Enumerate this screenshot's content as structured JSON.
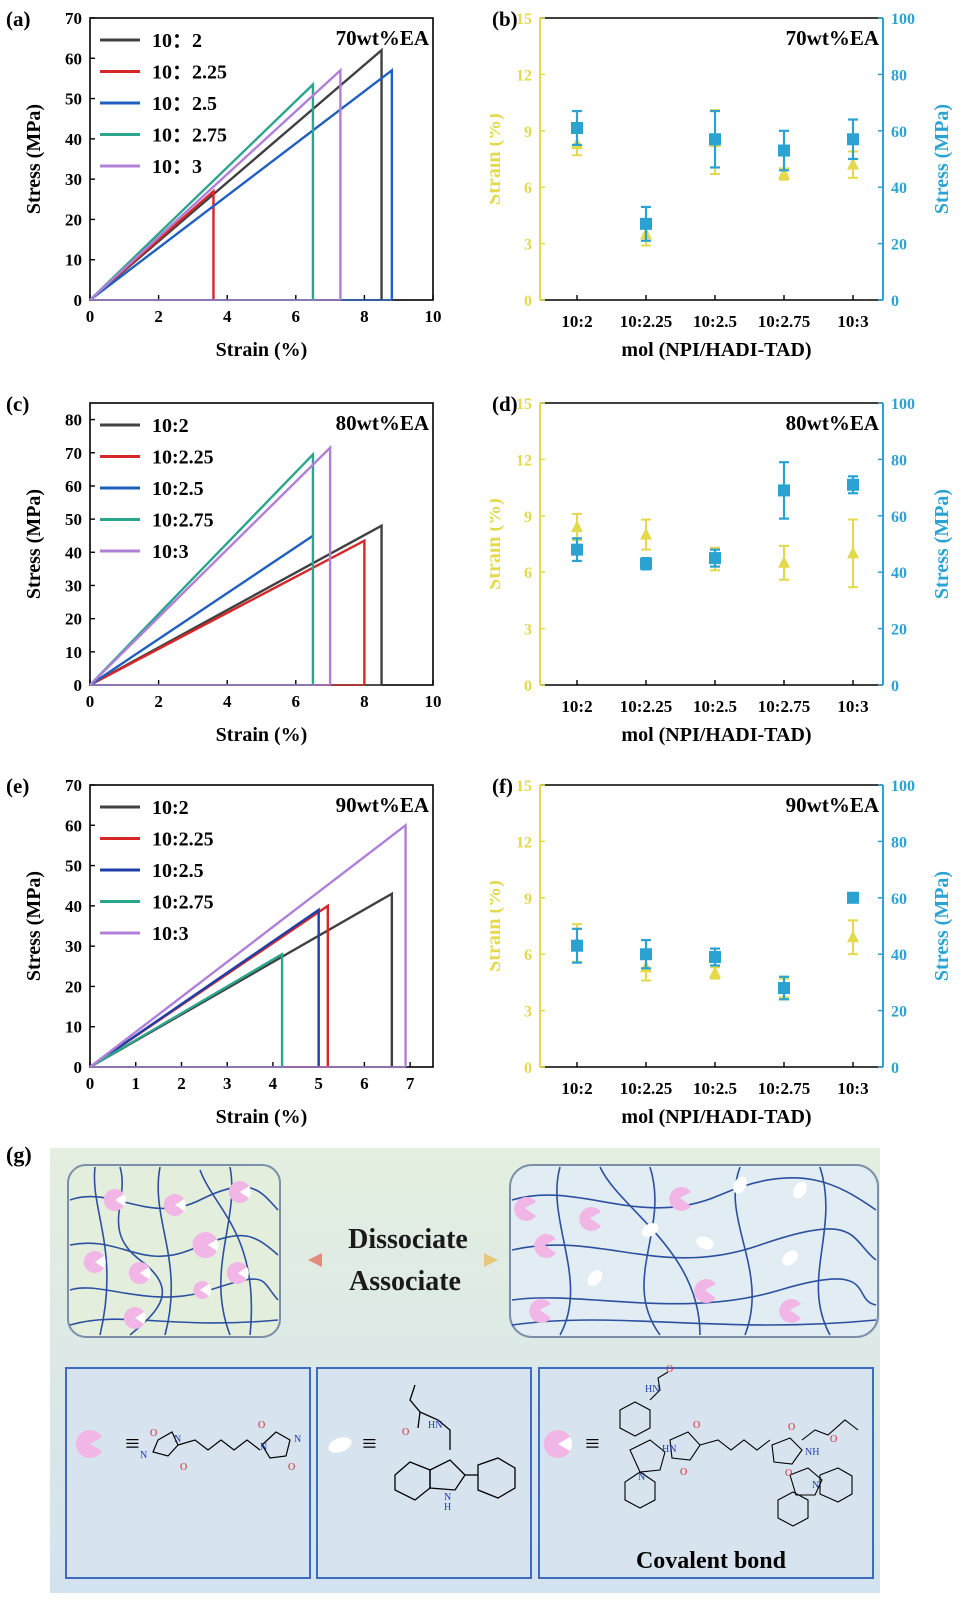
{
  "chart_data": [
    {
      "id": "a",
      "panel_label": "(a)",
      "type": "line",
      "annotation": "70wt%EA",
      "xlabel": "Strain (%)",
      "ylabel": "Stress (MPa)",
      "xlim": [
        0,
        10
      ],
      "ylim": [
        0,
        70
      ],
      "xticks": [
        "0",
        "2",
        "4",
        "6",
        "8",
        "10"
      ],
      "yticks": [
        "0",
        "10",
        "20",
        "30",
        "40",
        "50",
        "60",
        "70"
      ],
      "series": [
        {
          "name": "10：2",
          "color": "#404040",
          "x": [
            0,
            8.5,
            8.5
          ],
          "y": [
            0,
            62,
            0
          ]
        },
        {
          "name": "10：2.25",
          "color": "#d62728",
          "x": [
            0,
            3.6,
            3.6
          ],
          "y": [
            0,
            27,
            0
          ]
        },
        {
          "name": "10：2.5",
          "color": "#1f5fbf",
          "x": [
            0,
            8.8,
            8.8
          ],
          "y": [
            0,
            57,
            0
          ]
        },
        {
          "name": "10：2.75",
          "color": "#2ca58d",
          "x": [
            0,
            6.5,
            6.5
          ],
          "y": [
            0,
            53.5,
            0
          ]
        },
        {
          "name": "10：3",
          "color": "#b07fd8",
          "x": [
            0,
            7.3,
            7.3
          ],
          "y": [
            0,
            57,
            0
          ]
        }
      ]
    },
    {
      "id": "b",
      "panel_label": "(b)",
      "type": "scatter",
      "annotation": "70wt%EA",
      "xlabel": "mol (NPI/HADI-TAD)",
      "ylabel": "Strain (%)",
      "y2label": "Stress (MPa)",
      "categories": [
        "10:2",
        "10:2.25",
        "10:2.5",
        "10:2.75",
        "10:3"
      ],
      "ylim": [
        0,
        15
      ],
      "y2lim": [
        0,
        100
      ],
      "yticks": [
        "0",
        "3",
        "6",
        "9",
        "12",
        "15"
      ],
      "y2ticks": [
        "0",
        "20",
        "40",
        "60",
        "80",
        "100"
      ],
      "strain": {
        "values": [
          8.3,
          3.5,
          8.4,
          6.7,
          7.2
        ],
        "err": [
          0.6,
          0.6,
          1.7,
          0.3,
          0.7
        ],
        "color": "#e3d94a"
      },
      "stress": {
        "values": [
          61,
          27,
          57,
          53,
          57
        ],
        "err": [
          6,
          6,
          10,
          7,
          7
        ],
        "color": "#2aa3d3"
      }
    },
    {
      "id": "c",
      "panel_label": "(c)",
      "type": "line",
      "annotation": "80wt%EA",
      "xlabel": "Strain (%)",
      "ylabel": "Stress (MPa)",
      "xlim": [
        0,
        10
      ],
      "ylim": [
        0,
        85
      ],
      "xticks": [
        "0",
        "2",
        "4",
        "6",
        "8",
        "10"
      ],
      "yticks": [
        "0",
        "10",
        "20",
        "30",
        "40",
        "50",
        "60",
        "70",
        "80"
      ],
      "series": [
        {
          "name": "10:2",
          "color": "#404040",
          "x": [
            0,
            8.5,
            8.5
          ],
          "y": [
            0,
            48,
            0
          ]
        },
        {
          "name": "10:2.25",
          "color": "#d62728",
          "x": [
            0,
            8.0,
            8.0
          ],
          "y": [
            0,
            43.5,
            0
          ]
        },
        {
          "name": "10:2.5",
          "color": "#1f5fbf",
          "x": [
            0,
            6.5
          ],
          "y": [
            0,
            45
          ]
        },
        {
          "name": "10:2.75",
          "color": "#2ca58d",
          "x": [
            0,
            6.5,
            6.5
          ],
          "y": [
            0,
            69.5,
            0
          ]
        },
        {
          "name": "10:3",
          "color": "#b07fd8",
          "x": [
            0,
            7.0,
            7.0
          ],
          "y": [
            0,
            71.5,
            0
          ]
        }
      ]
    },
    {
      "id": "d",
      "panel_label": "(d)",
      "type": "scatter",
      "annotation": "80wt%EA",
      "xlabel": "mol (NPI/HADI-TAD)",
      "ylabel": "Strain (%)",
      "y2label": "Stress (MPa)",
      "categories": [
        "10:2",
        "10:2.25",
        "10:2.5",
        "10:2.75",
        "10:3"
      ],
      "ylim": [
        0,
        15
      ],
      "y2lim": [
        0,
        100
      ],
      "yticks": [
        "0",
        "3",
        "6",
        "9",
        "12",
        "15"
      ],
      "y2ticks": [
        "0",
        "20",
        "40",
        "60",
        "80",
        "100"
      ],
      "strain": {
        "values": [
          8.4,
          8.0,
          6.7,
          6.5,
          7.0
        ],
        "err": [
          0.7,
          0.8,
          0.6,
          0.9,
          1.8
        ],
        "color": "#e3d94a"
      },
      "stress": {
        "values": [
          48,
          43,
          45,
          69,
          71
        ],
        "err": [
          4,
          2,
          3,
          10,
          3
        ],
        "color": "#2aa3d3"
      }
    },
    {
      "id": "e",
      "panel_label": "(e)",
      "type": "line",
      "annotation": "90wt%EA",
      "xlabel": "Strain (%)",
      "ylabel": "Stress (MPa)",
      "xlim": [
        0,
        7.5
      ],
      "ylim": [
        0,
        70
      ],
      "xticks": [
        "0",
        "1",
        "2",
        "3",
        "4",
        "5",
        "6",
        "7"
      ],
      "yticks": [
        "0",
        "10",
        "20",
        "30",
        "40",
        "50",
        "60",
        "70"
      ],
      "series": [
        {
          "name": "10:2",
          "color": "#404040",
          "x": [
            0,
            6.6,
            6.6
          ],
          "y": [
            0,
            43,
            0
          ]
        },
        {
          "name": "10:2.25",
          "color": "#d62728",
          "x": [
            0,
            5.2,
            5.2
          ],
          "y": [
            0,
            40,
            0
          ]
        },
        {
          "name": "10:2.5",
          "color": "#1f3fa8",
          "x": [
            0,
            5.0,
            5.0
          ],
          "y": [
            0,
            39,
            0
          ]
        },
        {
          "name": "10:2.75",
          "color": "#2ca58d",
          "x": [
            0,
            4.2,
            4.2
          ],
          "y": [
            0,
            28,
            0
          ]
        },
        {
          "name": "10:3",
          "color": "#b07fd8",
          "x": [
            0,
            6.9,
            6.9
          ],
          "y": [
            0,
            60,
            0
          ]
        }
      ]
    },
    {
      "id": "f",
      "panel_label": "(f)",
      "type": "scatter",
      "annotation": "90wt%EA",
      "xlabel": "mol (NPI/HADI-TAD)",
      "ylabel": "Strain (%)",
      "y2label": "Stress (MPa)",
      "categories": [
        "10:2",
        "10:2.25",
        "10:2.5",
        "10:2.75",
        "10:3"
      ],
      "ylim": [
        0,
        15
      ],
      "y2lim": [
        0,
        100
      ],
      "yticks": [
        "0",
        "3",
        "6",
        "9",
        "12",
        "15"
      ],
      "y2ticks": [
        "0",
        "20",
        "40",
        "60",
        "80",
        "100"
      ],
      "strain": {
        "values": [
          6.6,
          5.3,
          5.0,
          4.2,
          6.9
        ],
        "err": [
          1.0,
          0.7,
          0.3,
          0.5,
          0.9
        ],
        "color": "#e3d94a"
      },
      "stress": {
        "values": [
          43,
          40,
          39,
          28,
          60
        ],
        "err": [
          6,
          5,
          3,
          4,
          1
        ],
        "color": "#2aa3d3"
      }
    }
  ],
  "panel_g": {
    "label": "(g)",
    "dissociate": "Dissociate",
    "associate": "Associate",
    "equiv": "≡",
    "covalent_bond": "Covalent bond",
    "atom_labels": {
      "o": "O",
      "n": "N",
      "hn": "HN",
      "nh": "NH",
      "h": "H"
    }
  }
}
